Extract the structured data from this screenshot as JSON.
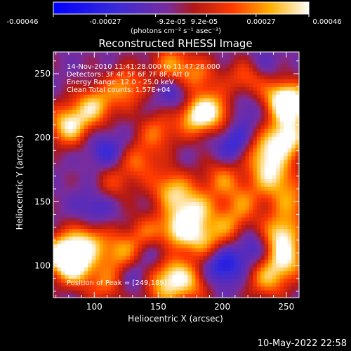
{
  "colorbar": {
    "tick_labels": [
      "-0.00046",
      "-0.00027",
      "-9.2e-05",
      "9.2e-05",
      "0.00027",
      "0.00046"
    ],
    "unit_label": "(photons cm⁻² s⁻¹ asec⁻²)"
  },
  "title": "Reconstructed RHESSI Image",
  "overlay": {
    "lines": [
      "14-Nov-2010 11:41:28.000 to 11:47:28.000",
      "Detectors: 3F 4F 5F 6F 7F 8F, Att 0",
      "Energy Range: 12.0 - 25.0 keV",
      "Clean    Total counts: 1.57E+04"
    ],
    "peak": "Position of Peak = [249,189]"
  },
  "footer": {
    "timestamp": "10-May-2022 22:58"
  },
  "chart_data": {
    "type": "heatmap",
    "title": "Reconstructed RHESSI Image",
    "xlabel": "Heliocentric X (arcsec)",
    "ylabel": "Heliocentric Y (arcsec)",
    "xlim": [
      68,
      260
    ],
    "ylim": [
      75,
      267
    ],
    "x_ticks": [
      100,
      150,
      200,
      250
    ],
    "y_ticks": [
      100,
      150,
      200,
      250
    ],
    "value_range": [
      -0.00046,
      0.00046
    ],
    "peak_position": [
      249,
      189
    ],
    "colors": {
      "low": "#1a1aff",
      "mid": "#7a2aa0",
      "high": "#ffffff",
      "frame": "#ffffff"
    },
    "blobs": [
      {
        "x": 80,
        "y": 210,
        "v": 0.00042
      },
      {
        "x": 100,
        "y": 225,
        "v": 0.00036
      },
      {
        "x": 125,
        "y": 240,
        "v": 0.0003
      },
      {
        "x": 160,
        "y": 257,
        "v": 0.00028
      },
      {
        "x": 180,
        "y": 248,
        "v": 0.00026
      },
      {
        "x": 180,
        "y": 218,
        "v": 0.00044
      },
      {
        "x": 198,
        "y": 222,
        "v": 0.0003
      },
      {
        "x": 150,
        "y": 205,
        "v": 0.00024
      },
      {
        "x": 220,
        "y": 247,
        "v": 0.0003
      },
      {
        "x": 245,
        "y": 232,
        "v": 0.0003
      },
      {
        "x": 255,
        "y": 225,
        "v": 0.00042
      },
      {
        "x": 250,
        "y": 199,
        "v": 0.00046
      },
      {
        "x": 230,
        "y": 188,
        "v": 0.00032
      },
      {
        "x": 240,
        "y": 170,
        "v": 0.00036
      },
      {
        "x": 218,
        "y": 150,
        "v": 0.00022
      },
      {
        "x": 200,
        "y": 168,
        "v": 0.00026
      },
      {
        "x": 135,
        "y": 182,
        "v": 0.00024
      },
      {
        "x": 115,
        "y": 165,
        "v": 0.00018
      },
      {
        "x": 160,
        "y": 160,
        "v": 0.00034
      },
      {
        "x": 178,
        "y": 145,
        "v": 0.00036
      },
      {
        "x": 165,
        "y": 128,
        "v": 0.00038
      },
      {
        "x": 185,
        "y": 120,
        "v": 0.0003
      },
      {
        "x": 140,
        "y": 125,
        "v": 0.00022
      },
      {
        "x": 205,
        "y": 132,
        "v": 0.00024
      },
      {
        "x": 160,
        "y": 95,
        "v": 0.00034
      },
      {
        "x": 175,
        "y": 85,
        "v": 0.00026
      },
      {
        "x": 150,
        "y": 80,
        "v": 0.00022
      },
      {
        "x": 120,
        "y": 110,
        "v": 0.0003
      },
      {
        "x": 75,
        "y": 110,
        "v": 0.00042
      },
      {
        "x": 85,
        "y": 100,
        "v": 0.0004
      },
      {
        "x": 95,
        "y": 120,
        "v": 0.00032
      },
      {
        "x": 110,
        "y": 85,
        "v": 0.00024
      },
      {
        "x": 245,
        "y": 125,
        "v": 0.0004
      },
      {
        "x": 250,
        "y": 105,
        "v": 0.00036
      },
      {
        "x": 235,
        "y": 90,
        "v": 0.0003
      },
      {
        "x": 255,
        "y": 150,
        "v": 0.00026
      },
      {
        "x": 165,
        "y": 235,
        "v": -0.0002
      },
      {
        "x": 210,
        "y": 195,
        "v": -0.00022
      },
      {
        "x": 110,
        "y": 190,
        "v": -0.00018
      },
      {
        "x": 100,
        "y": 145,
        "v": -0.00016
      },
      {
        "x": 200,
        "y": 100,
        "v": -0.00026
      },
      {
        "x": 225,
        "y": 115,
        "v": -0.00018
      },
      {
        "x": 150,
        "y": 110,
        "v": -0.00016
      },
      {
        "x": 230,
        "y": 255,
        "v": -0.00014
      },
      {
        "x": 130,
        "y": 90,
        "v": -0.00014
      },
      {
        "x": 215,
        "y": 225,
        "v": -0.00018
      }
    ]
  }
}
